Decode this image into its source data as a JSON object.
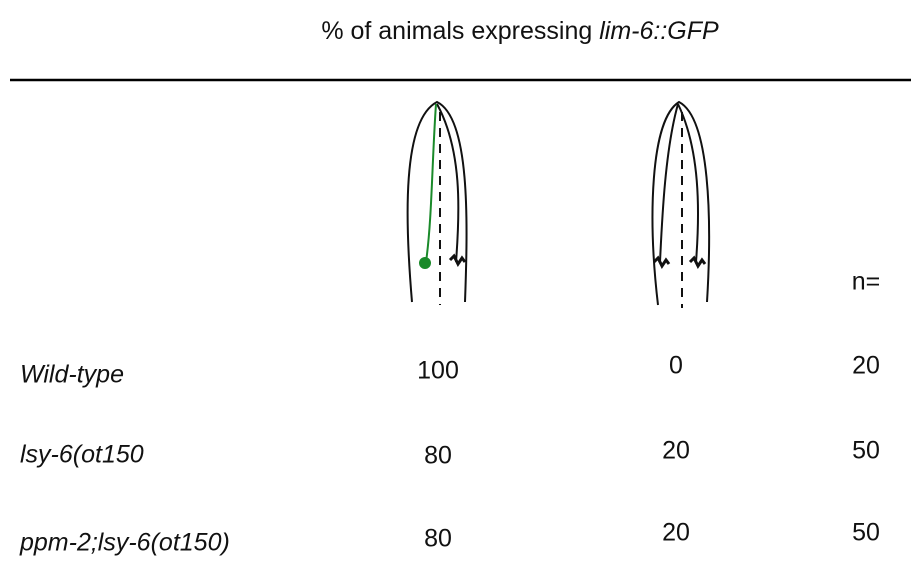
{
  "title": {
    "text": "% of animals expressing ",
    "italic": "lim-6::GFP"
  },
  "table": {
    "count_header": "n=",
    "rows": [
      {
        "genotype": "Wild-type",
        "values": [
          100,
          0
        ],
        "n": 20
      },
      {
        "genotype": "lsy-6(ot150",
        "values": [
          80,
          20
        ],
        "n": 50
      },
      {
        "genotype": "ppm-2;lsy-6(ot150)",
        "values": [
          80,
          20
        ],
        "n": 50
      }
    ]
  }
}
